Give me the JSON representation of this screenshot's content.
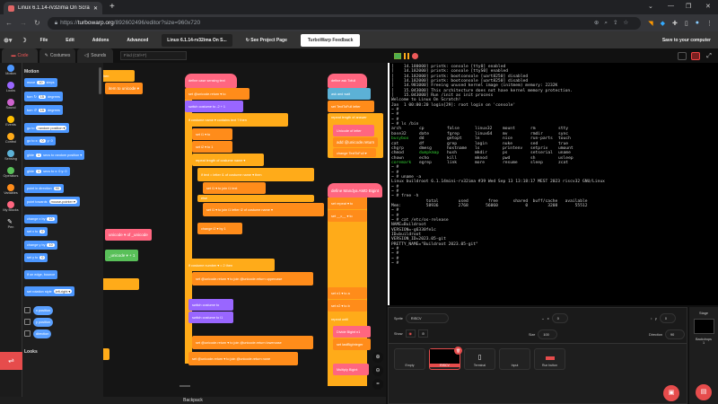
{
  "browser": {
    "tab_title": "Linux 6.1.14-rv32ima On Scratch",
    "url_host": "turbowarp.org",
    "url_scheme": "https://",
    "url_path": "/892602496/editor?size=960x720"
  },
  "menu": {
    "items": [
      "File",
      "Edit",
      "Addons",
      "Advanced"
    ],
    "project_title": "Linux 6.1.14-rv32ima On S...",
    "see_project": "See Project Page",
    "feedback": "TurboWarp Feedback",
    "save": "Save to your computer"
  },
  "editor_tabs": [
    "Code",
    "Costumes",
    "Sounds"
  ],
  "find_placeholder": "Find (Ctrl+F)",
  "categories": [
    {
      "label": "Motion",
      "color": "#4c97ff"
    },
    {
      "label": "Looks",
      "color": "#9966ff"
    },
    {
      "label": "Sound",
      "color": "#cf63cf"
    },
    {
      "label": "Events",
      "color": "#ffbf00"
    },
    {
      "label": "Control",
      "color": "#ffab19"
    },
    {
      "label": "Sensing",
      "color": "#5cb1d6"
    },
    {
      "label": "Operators",
      "color": "#59c059"
    },
    {
      "label": "Variables",
      "color": "#ff8c1a"
    },
    {
      "label": "My Blocks",
      "color": "#ff6680"
    },
    {
      "label": "Pen",
      "color": "#ffffff"
    }
  ],
  "palette": {
    "heading": "Motion",
    "next_heading": "Looks",
    "blocks": [
      {
        "text": "move",
        "input": "10",
        "text2": "steps"
      },
      {
        "text": "turn ↻",
        "input": "15",
        "text2": "degrees"
      },
      {
        "text": "turn ↺",
        "input": "15",
        "text2": "degrees"
      },
      {
        "text": "go to",
        "input": "random position ▾",
        "text2": ""
      },
      {
        "text": "go to x:",
        "input": "0",
        "text2": "y: 0"
      },
      {
        "text": "glide",
        "input": "1",
        "text2": "secs to random position ▾"
      },
      {
        "text": "glide",
        "input": "1",
        "text2": "secs to x: 0 y: 0"
      },
      {
        "text": "point in direction",
        "input": "90",
        "text2": ""
      },
      {
        "text": "point towards",
        "input": "mouse-pointer ▾",
        "text2": ""
      },
      {
        "text": "change x by",
        "input": "10",
        "text2": ""
      },
      {
        "text": "set x to",
        "input": "0",
        "text2": ""
      },
      {
        "text": "change y by",
        "input": "10",
        "text2": ""
      },
      {
        "text": "set y to",
        "input": "0",
        "text2": ""
      },
      {
        "text": "if on edge, bounce",
        "input": "",
        "text2": ""
      },
      {
        "text": "set rotation style",
        "input": "left-right ▾",
        "text2": ""
      }
    ],
    "reporters": [
      "x position",
      "y position",
      "direction"
    ]
  },
  "scripts": {
    "define1": "define  case sensing  text",
    "b1": "set  @unicode.return ▾  to",
    "b2": "switch costume to  -2 + 1",
    "b3": "if  costume name ▾  contains  text ?  then",
    "b4": "set  i1 ▾  to",
    "b5": "set  i2 ▾  to  1",
    "b6": "repeat  length of  costume name ▾",
    "b7": "if  text = letter i1 of costume name ▾  then",
    "b8": "set  i1 ▾  to  join i1 text",
    "b9": "else",
    "b10": "set  i1 ▾  to  join i1 letter i2 of costume name ▾",
    "b11": "change  i2 ▾  by  1",
    "b12": "switch costume to",
    "b13": "switch costume to  i1",
    "b14": "if  costume number ▾ = 2  then",
    "b15": "set  @unicode.return ▾  to  join @unicode.return uppercase",
    "b16": "set  @unicode.return ▾  to  join @unicode.return lowercase",
    "b17": "set  @unicode.return ▾  to  join @unicode.return none",
    "define2": "define  ask Tofull",
    "r1": "ask  and wait",
    "r2": "set  TextToFull letter",
    "r3": "repeat  length of  answer",
    "r4": "Unicode of  letter",
    "r5": "add  @unicode.return",
    "r6": "change  TextToFull ▾",
    "define3": "define  Mandya AMD Bigint",
    "r7": "set  repeat ▾  to",
    "r8": "set  __c__ ▾  to",
    "r9": "set  n1 ▾  to  a",
    "r10": "set  n2 ▾  to  b",
    "r11": "repeat until",
    "r12": "Divide Bigint  n1",
    "r13": "set  lastBigInteger",
    "r14": "Multiply Bigint",
    "l1": "then",
    "l2": "item  to  unicode ▾",
    "l3": "unicode ▾  of  _unicode",
    "l4": "_unicode ▾  + 1"
  },
  "terminal": {
    "boot": [
      "[    14.180000] printk: console [tty0] enabled",
      "[    14.182000] printk: console [ttyS0] enabled",
      "[    14.182000] printk: bootconsole [uart8250] disabled",
      "[    14.182000] printk: bootconsole [uart8250] disabled",
      "[    14.981000] Freeing unused kernel image (initmem) memory: 2232K",
      "[    15.043000] This architecture does not have kernel memory protection.",
      "[    15.043000] Run /init as init process",
      "Welcome to Linux On Scratch!",
      "Jan  1 00:00:20 login[29]: root login on 'console'",
      "~ #",
      "~ #",
      "~ #",
      "~ # ls /bin"
    ],
    "ls": [
      [
        "arch",
        "cp",
        "false",
        "linux32",
        "mount",
        "rm",
        "stty"
      ],
      [
        "base32",
        "date",
        "fgrep",
        "linux64",
        "mv",
        "rmdir",
        "sync"
      ],
      [
        "busybox",
        "dd",
        "getopt",
        "ln",
        "nice",
        "run-parts",
        "touch"
      ],
      [
        "cat",
        "df",
        "grep",
        "login",
        "nuke",
        "sed",
        "true"
      ],
      [
        "chgrp",
        "dmesg",
        "hostname",
        "ls",
        "printenv",
        "setpriv",
        "umount"
      ],
      [
        "chmod",
        "dumpkmap",
        "hush",
        "mkdir",
        "ps",
        "setserial",
        "uname"
      ],
      [
        "chown",
        "echo",
        "kill",
        "mknod",
        "pwd",
        "sh",
        "usleep"
      ],
      [
        "coremark",
        "egrep",
        "link",
        "more",
        "resume",
        "sleep",
        "zcat"
      ]
    ],
    "ls_highlight": [
      "busybox",
      "dumpkmap",
      "coremark"
    ],
    "after": [
      "~ #",
      "~ #",
      "~ # uname -a",
      "Linux buildroot 6.1.14mini-rv32ima #39 Wed Sep 13 13:18:17 MEST 2023 riscv32 GNU/Linux",
      "~ #",
      "~ #",
      "~ # free -h",
      "              total        used        free      shared  buff/cache   available",
      "Mem:          58936        2768       56060           0        3208       55512",
      "~ #",
      "~ #",
      "~ # cat /etc/os-release",
      "NAME=Buildroot",
      "VERSION=-g6330fe1c",
      "ID=buildroot",
      "VERSION_ID=2023.05-git",
      "PRETTY_NAME=\"Buildroot 2023.05-git\"",
      "~ #",
      "~ #",
      "~ #",
      "~ #"
    ]
  },
  "sprite_info": {
    "sprite_label": "Sprite",
    "sprite_name": "RISCV",
    "x_label": "x",
    "x": "0",
    "y_label": "y",
    "y": "0",
    "show_label": "Show",
    "size_label": "Size",
    "size": "100",
    "direction_label": "Direction",
    "direction": "90"
  },
  "sprites": [
    "Empty",
    "RISCV",
    "Terminal",
    "Input",
    "Run button"
  ],
  "selected_sprite": "RISCV",
  "stage": {
    "label": "Stage",
    "backdrops_label": "Backdrops",
    "backdrops_count": "1"
  },
  "backpack": "Backpack",
  "colors": {
    "accent": "#e64c4c",
    "motion": "#4c97ff",
    "control": "#ffab19",
    "variables": "#ff8c1a",
    "myblocks": "#ff6680",
    "operators": "#59c059",
    "looks": "#9966ff"
  }
}
